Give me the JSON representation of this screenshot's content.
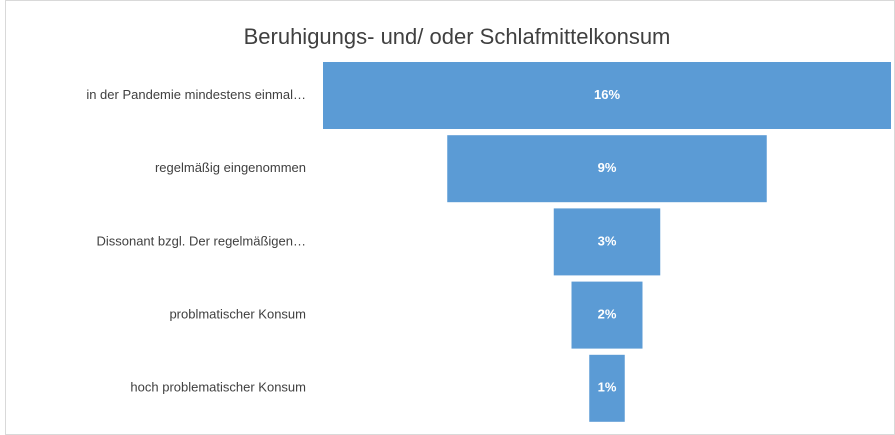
{
  "chart_data": {
    "type": "funnel",
    "title": "Beruhigungs- und/ oder Schlafmittelkonsum",
    "categories": [
      "in der Pandemie mindestens einmal…",
      "regelmäßig eingenommen",
      "Dissonant bzgl. Der regelmäßigen…",
      "problmatischer Konsum",
      "hoch problematischer Konsum"
    ],
    "values": [
      16,
      9,
      3,
      2,
      1
    ],
    "value_labels": [
      "16%",
      "9%",
      "3%",
      "2%",
      "1%"
    ],
    "color": "#5b9bd5"
  }
}
